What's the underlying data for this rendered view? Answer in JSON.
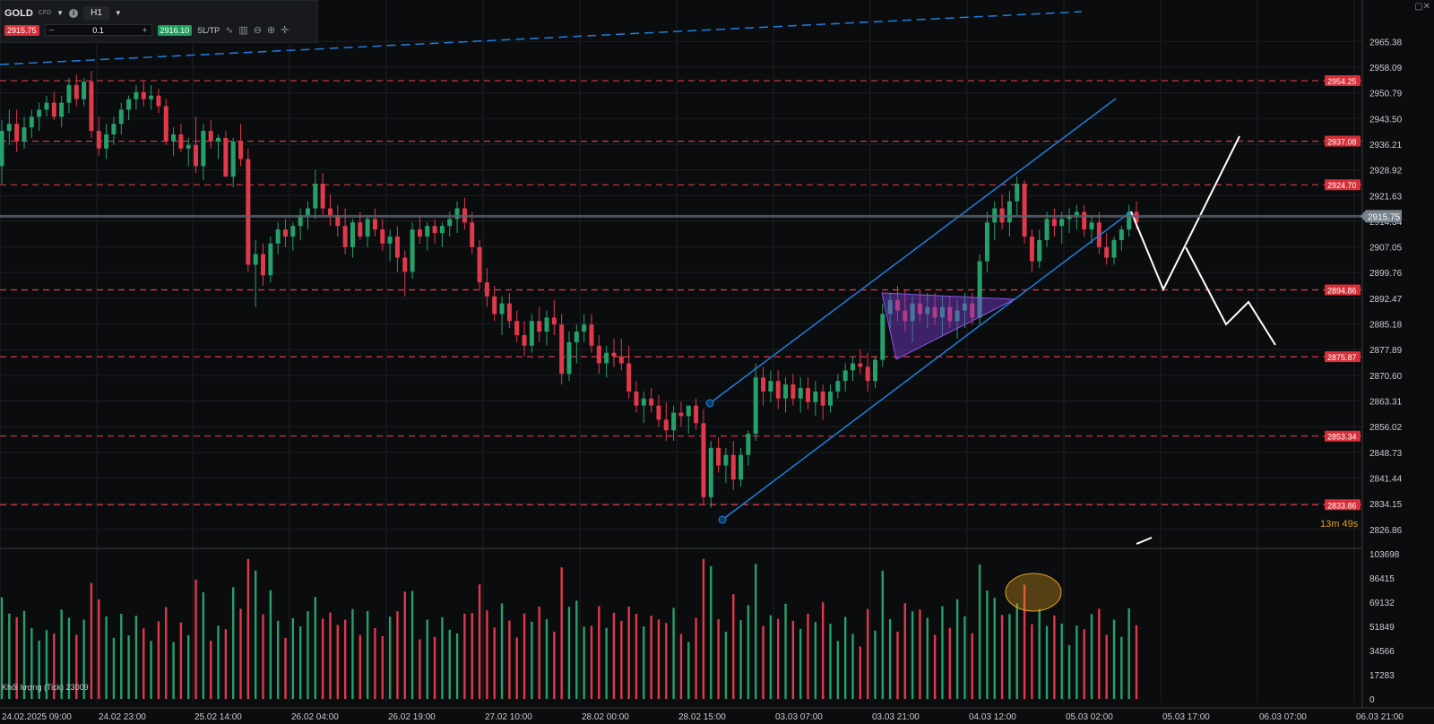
{
  "toolbar": {
    "symbol": "GOLD",
    "symbol_type": "CFD",
    "timeframe": "H1",
    "sell_price": "2915.75",
    "lot_size": "0.1",
    "buy_price": "2916.10",
    "sl_tp_label": "SL/TP"
  },
  "colors": {
    "background": "#0b0c0e",
    "grid": "#1c1f24",
    "bull": "#26a06a",
    "bear": "#e0394a",
    "channel": "#1e7fe0",
    "level_line": "#e0394a",
    "projection": "#ffffff",
    "triangle": "#7a3fd6",
    "current_price_tag": "#78828c",
    "timer": "#e0a020"
  },
  "chart_data": {
    "type": "candlestick",
    "symbol": "GOLD",
    "timeframe": "H1",
    "current_price": 2915.75,
    "countdown": "13m 49s",
    "price_axis_ticks": [
      "2965.38",
      "2958.09",
      "2950.79",
      "2943.50",
      "2936.21",
      "2928.92",
      "2921.63",
      "2914.34",
      "2907.05",
      "2899.76",
      "2892.47",
      "2885.18",
      "2877.89",
      "2870.60",
      "2863.31",
      "2856.02",
      "2848.73",
      "2841.44",
      "2834.15",
      "2826.86"
    ],
    "volume_axis_ticks": [
      "103698",
      "86415",
      "69132",
      "51849",
      "34566",
      "17283",
      "0"
    ],
    "time_axis_labels": [
      "24.02.2025 09:00",
      "24.02 23:00",
      "25.02 14:00",
      "26.02 04:00",
      "26.02 19:00",
      "27.02 10:00",
      "28.02 00:00",
      "28.02 15:00",
      "03.03 07:00",
      "03.03 21:00",
      "04.03 12:00",
      "05.03 02:00",
      "05.03 17:00",
      "06.03 07:00",
      "06.03 21:00"
    ],
    "horizontal_levels": [
      {
        "price": 2954.25,
        "label": "2954.25"
      },
      {
        "price": 2937.08,
        "label": "2937.08"
      },
      {
        "price": 2924.7,
        "label": "2924.70"
      },
      {
        "price": 2894.86,
        "label": "2894.86"
      },
      {
        "price": 2875.87,
        "label": "2875.87"
      },
      {
        "price": 2853.34,
        "label": "2853.34"
      },
      {
        "price": 2833.86,
        "label": "2833.86"
      }
    ],
    "volume_label": "Khối lượng (Tick) 23009",
    "candles_ohlc": [
      [
        2930,
        2943,
        2925,
        2940
      ],
      [
        2940,
        2946,
        2936,
        2942
      ],
      [
        2942,
        2946,
        2934,
        2937
      ],
      [
        2937,
        2944,
        2935,
        2941
      ],
      [
        2941,
        2946,
        2938,
        2944
      ],
      [
        2944,
        2948,
        2940,
        2946
      ],
      [
        2946,
        2950,
        2944,
        2948
      ],
      [
        2948,
        2951,
        2943,
        2944
      ],
      [
        2944,
        2950,
        2941,
        2948
      ],
      [
        2948,
        2955,
        2945,
        2953
      ],
      [
        2953,
        2956,
        2947,
        2949
      ],
      [
        2949,
        2955,
        2947,
        2954
      ],
      [
        2954,
        2957,
        2938,
        2940
      ],
      [
        2940,
        2944,
        2933,
        2935
      ],
      [
        2935,
        2942,
        2932,
        2939
      ],
      [
        2939,
        2944,
        2936,
        2942
      ],
      [
        2942,
        2948,
        2939,
        2946
      ],
      [
        2946,
        2950,
        2943,
        2949
      ],
      [
        2949,
        2953,
        2946,
        2951
      ],
      [
        2951,
        2954,
        2947,
        2949
      ],
      [
        2949,
        2953,
        2946,
        2950
      ],
      [
        2950,
        2952,
        2945,
        2947
      ],
      [
        2947,
        2949,
        2936,
        2937
      ],
      [
        2937,
        2941,
        2933,
        2939
      ],
      [
        2939,
        2942,
        2934,
        2935
      ],
      [
        2935,
        2938,
        2930,
        2936
      ],
      [
        2936,
        2944,
        2928,
        2930
      ],
      [
        2930,
        2942,
        2926,
        2940
      ],
      [
        2940,
        2943,
        2935,
        2937
      ],
      [
        2937,
        2939,
        2932,
        2938
      ],
      [
        2938,
        2940,
        2931,
        2927
      ],
      [
        2927,
        2938,
        2924,
        2937
      ],
      [
        2937,
        2942,
        2930,
        2932
      ],
      [
        2932,
        2935,
        2900,
        2902
      ],
      [
        2902,
        2909,
        2890,
        2905
      ],
      [
        2905,
        2908,
        2896,
        2899
      ],
      [
        2899,
        2910,
        2897,
        2908
      ],
      [
        2908,
        2914,
        2905,
        2912
      ],
      [
        2912,
        2915,
        2907,
        2910
      ],
      [
        2910,
        2914,
        2906,
        2913
      ],
      [
        2913,
        2918,
        2909,
        2916
      ],
      [
        2916,
        2920,
        2912,
        2918
      ],
      [
        2918,
        2929,
        2915,
        2925
      ],
      [
        2925,
        2928,
        2916,
        2918
      ],
      [
        2918,
        2922,
        2913,
        2916
      ],
      [
        2916,
        2919,
        2910,
        2913
      ],
      [
        2913,
        2918,
        2905,
        2907
      ],
      [
        2907,
        2915,
        2904,
        2914
      ],
      [
        2914,
        2917,
        2909,
        2910
      ],
      [
        2910,
        2916,
        2907,
        2915
      ],
      [
        2915,
        2918,
        2910,
        2912
      ],
      [
        2912,
        2915,
        2906,
        2908
      ],
      [
        2908,
        2912,
        2903,
        2910
      ],
      [
        2910,
        2913,
        2900,
        2904
      ],
      [
        2904,
        2906,
        2893,
        2900
      ],
      [
        2900,
        2914,
        2898,
        2912
      ],
      [
        2912,
        2916,
        2908,
        2910
      ],
      [
        2910,
        2914,
        2906,
        2913
      ],
      [
        2913,
        2915,
        2908,
        2911
      ],
      [
        2911,
        2914,
        2907,
        2913
      ],
      [
        2913,
        2917,
        2910,
        2915
      ],
      [
        2915,
        2920,
        2911,
        2918
      ],
      [
        2918,
        2921,
        2912,
        2914
      ],
      [
        2914,
        2917,
        2905,
        2907
      ],
      [
        2907,
        2909,
        2895,
        2897
      ],
      [
        2897,
        2901,
        2890,
        2893
      ],
      [
        2893,
        2896,
        2886,
        2888
      ],
      [
        2888,
        2893,
        2882,
        2891
      ],
      [
        2891,
        2894,
        2884,
        2886
      ],
      [
        2886,
        2889,
        2880,
        2882
      ],
      [
        2882,
        2886,
        2876,
        2879
      ],
      [
        2879,
        2888,
        2877,
        2886
      ],
      [
        2886,
        2890,
        2880,
        2883
      ],
      [
        2883,
        2889,
        2879,
        2887
      ],
      [
        2887,
        2892,
        2882,
        2885
      ],
      [
        2885,
        2888,
        2868,
        2871
      ],
      [
        2871,
        2883,
        2869,
        2880
      ],
      [
        2880,
        2885,
        2874,
        2883
      ],
      [
        2883,
        2888,
        2880,
        2885
      ],
      [
        2885,
        2888,
        2877,
        2879
      ],
      [
        2879,
        2882,
        2871,
        2874
      ],
      [
        2874,
        2879,
        2870,
        2877
      ],
      [
        2877,
        2881,
        2873,
        2876
      ],
      [
        2876,
        2881,
        2872,
        2874
      ],
      [
        2874,
        2879,
        2864,
        2866
      ],
      [
        2866,
        2869,
        2860,
        2862
      ],
      [
        2862,
        2866,
        2857,
        2864
      ],
      [
        2864,
        2867,
        2860,
        2862
      ],
      [
        2862,
        2865,
        2856,
        2858
      ],
      [
        2858,
        2863,
        2852,
        2855
      ],
      [
        2855,
        2862,
        2852,
        2860
      ],
      [
        2860,
        2863,
        2856,
        2859
      ],
      [
        2859,
        2862,
        2854,
        2862
      ],
      [
        2862,
        2864,
        2855,
        2857
      ],
      [
        2857,
        2861,
        2834,
        2836
      ],
      [
        2836,
        2852,
        2833,
        2850
      ],
      [
        2850,
        2853,
        2843,
        2845
      ],
      [
        2845,
        2850,
        2840,
        2848
      ],
      [
        2848,
        2852,
        2838,
        2841
      ],
      [
        2841,
        2850,
        2839,
        2848
      ],
      [
        2848,
        2855,
        2845,
        2854
      ],
      [
        2854,
        2874,
        2852,
        2870
      ],
      [
        2870,
        2873,
        2862,
        2866
      ],
      [
        2866,
        2872,
        2863,
        2869
      ],
      [
        2869,
        2872,
        2861,
        2864
      ],
      [
        2864,
        2870,
        2860,
        2868
      ],
      [
        2868,
        2871,
        2862,
        2864
      ],
      [
        2864,
        2870,
        2860,
        2867
      ],
      [
        2867,
        2870,
        2861,
        2863
      ],
      [
        2863,
        2869,
        2859,
        2866
      ],
      [
        2866,
        2868,
        2858,
        2862
      ],
      [
        2862,
        2868,
        2860,
        2866
      ],
      [
        2866,
        2871,
        2864,
        2869
      ],
      [
        2869,
        2874,
        2866,
        2872
      ],
      [
        2872,
        2876,
        2869,
        2874
      ],
      [
        2874,
        2878,
        2871,
        2873
      ],
      [
        2873,
        2877,
        2866,
        2869
      ],
      [
        2869,
        2876,
        2867,
        2875
      ],
      [
        2875,
        2891,
        2873,
        2888
      ],
      [
        2888,
        2894,
        2884,
        2892
      ],
      [
        2892,
        2896,
        2886,
        2889
      ],
      [
        2889,
        2895,
        2883,
        2886
      ],
      [
        2886,
        2893,
        2880,
        2891
      ],
      [
        2891,
        2895,
        2886,
        2888
      ],
      [
        2888,
        2894,
        2884,
        2890
      ],
      [
        2890,
        2894,
        2885,
        2887
      ],
      [
        2887,
        2893,
        2882,
        2890
      ],
      [
        2890,
        2893,
        2884,
        2886
      ],
      [
        2886,
        2892,
        2881,
        2889
      ],
      [
        2889,
        2894,
        2884,
        2891
      ],
      [
        2891,
        2894,
        2885,
        2887
      ],
      [
        2887,
        2905,
        2885,
        2903
      ],
      [
        2903,
        2917,
        2900,
        2914
      ],
      [
        2914,
        2920,
        2909,
        2918
      ],
      [
        2918,
        2922,
        2912,
        2914
      ],
      [
        2914,
        2923,
        2910,
        2920
      ],
      [
        2920,
        2927,
        2916,
        2925
      ],
      [
        2925,
        2926,
        2908,
        2910
      ],
      [
        2910,
        2912,
        2900,
        2903
      ],
      [
        2903,
        2912,
        2901,
        2909
      ],
      [
        2909,
        2917,
        2907,
        2915
      ],
      [
        2915,
        2918,
        2910,
        2913
      ],
      [
        2913,
        2917,
        2908,
        2915
      ],
      [
        2915,
        2918,
        2911,
        2916
      ],
      [
        2916,
        2919,
        2912,
        2917
      ],
      [
        2917,
        2919,
        2910,
        2912
      ],
      [
        2912,
        2916,
        2908,
        2914
      ],
      [
        2914,
        2917,
        2905,
        2907
      ],
      [
        2907,
        2911,
        2902,
        2904
      ],
      [
        2904,
        2910,
        2902,
        2909
      ],
      [
        2909,
        2913,
        2906,
        2912
      ],
      [
        2912,
        2919,
        2910,
        2917
      ],
      [
        2917,
        2920,
        2912,
        2914
      ]
    ]
  }
}
